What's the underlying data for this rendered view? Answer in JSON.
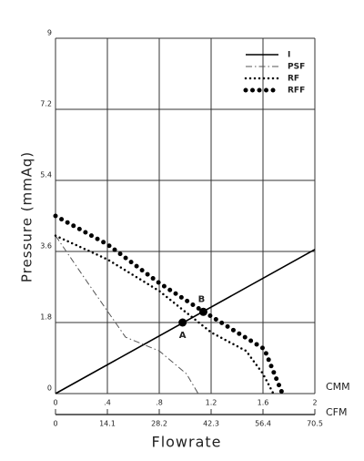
{
  "chart_data": {
    "type": "line",
    "xlabel": "Flowrate",
    "ylabel": "Pressure (mmAq)",
    "x_unit": "CMM",
    "x2_unit": "CFM",
    "xlim": [
      0,
      2
    ],
    "xticks": [
      0,
      {
        "value": 0.4,
        "label": ".4"
      },
      {
        "value": 0.8,
        "label": ".8"
      },
      1.2,
      1.6,
      2
    ],
    "x2lim": [
      0,
      70.5
    ],
    "x2ticks": [
      0,
      14.1,
      28.2,
      42.3,
      56.4,
      70.5
    ],
    "ylim": [
      0,
      9
    ],
    "yticks": [
      0,
      1.8,
      3.6,
      5.4,
      7.2,
      9
    ],
    "grid": true,
    "legend": "upper right",
    "series": [
      {
        "name": "I",
        "color": "#000000",
        "style": "solid",
        "x": [
          0,
          2
        ],
        "values": [
          0,
          3.65
        ]
      },
      {
        "name": "PSF",
        "color": "#555555",
        "style": "dashdot",
        "x": [
          0,
          0.25,
          0.54,
          0.8,
          1.01,
          1.1
        ],
        "values": [
          4.0,
          2.8,
          1.43,
          1.08,
          0.5,
          0
        ]
      },
      {
        "name": "RF",
        "color": "#000000",
        "style": "dotted",
        "x": [
          0,
          0.4,
          0.8,
          1.2,
          1.47,
          1.6,
          1.68
        ],
        "values": [
          4.0,
          3.4,
          2.6,
          1.55,
          1.08,
          0.5,
          0
        ]
      },
      {
        "name": "RFF",
        "color": "#000000",
        "style": "bigdots",
        "x": [
          0,
          0.4,
          0.8,
          1.14,
          1.4,
          1.61,
          1.7,
          1.75
        ],
        "values": [
          4.5,
          3.78,
          2.8,
          2.08,
          1.55,
          1.13,
          0.4,
          0
        ]
      }
    ],
    "points": [
      {
        "label": "A",
        "x": 0.98,
        "y": 1.8
      },
      {
        "label": "B",
        "x": 1.14,
        "y": 2.07
      }
    ]
  }
}
